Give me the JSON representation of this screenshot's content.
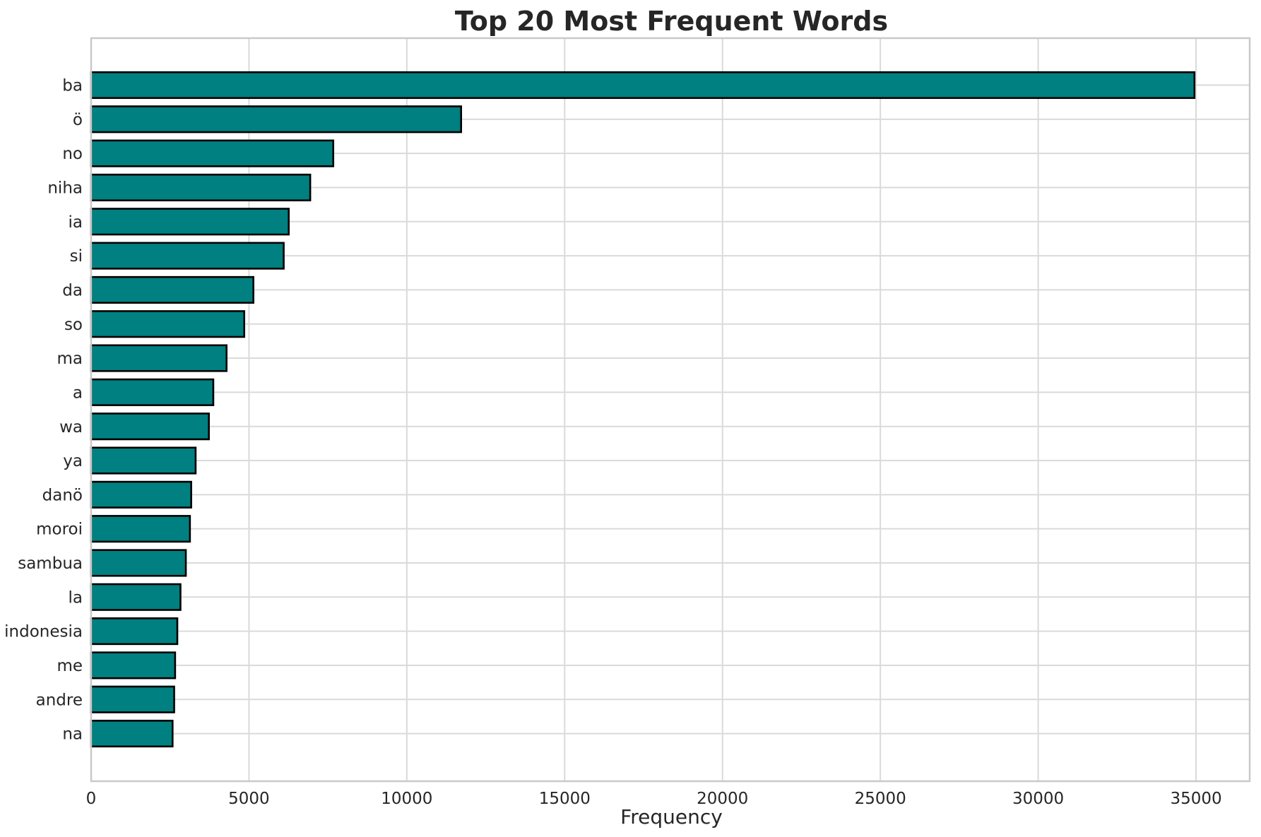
{
  "chart_data": {
    "type": "bar",
    "orientation": "horizontal",
    "title": "Top 20 Most Frequent Words",
    "xlabel": "Frequency",
    "ylabel": "",
    "categories": [
      "ba",
      "ö",
      "no",
      "niha",
      "ia",
      "si",
      "da",
      "so",
      "ma",
      "a",
      "wa",
      "ya",
      "danö",
      "moroi",
      "sambua",
      "la",
      "indonesia",
      "me",
      "andre",
      "na"
    ],
    "values": [
      34950,
      11720,
      7670,
      6940,
      6260,
      6100,
      5140,
      4850,
      4290,
      3870,
      3730,
      3310,
      3170,
      3130,
      3000,
      2830,
      2730,
      2660,
      2630,
      2580
    ],
    "xticks": [
      0,
      5000,
      10000,
      15000,
      20000,
      25000,
      30000,
      35000
    ],
    "xtick_labels": [
      "0",
      "5000",
      "10000",
      "15000",
      "20000",
      "25000",
      "30000",
      "35000"
    ],
    "xlim": [
      0,
      36700
    ],
    "grid": "both",
    "legend": null,
    "colors": {
      "bar_fill": "#008080",
      "bar_edge": "#000000",
      "grid_line": "#dadada",
      "spine": "#c9c9c9",
      "text": "#262626",
      "background": "#ffffff"
    }
  }
}
